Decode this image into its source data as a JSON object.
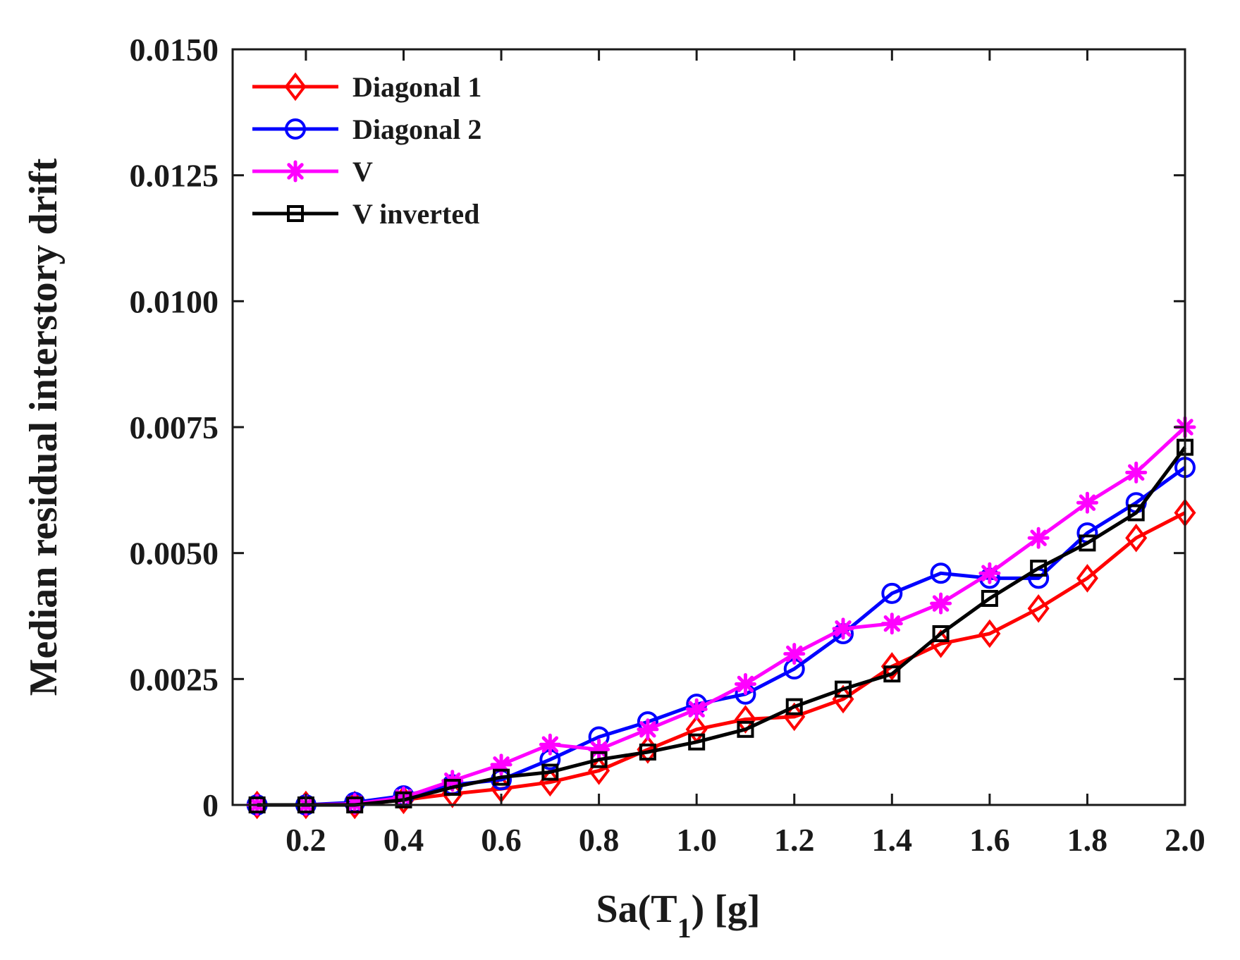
{
  "chart_data": {
    "type": "line",
    "title": "",
    "xlabel": {
      "main": "Sa(T",
      "sub": "1",
      "tail": ") [g]"
    },
    "ylabel": "Median residual interstory drift",
    "xlim": [
      0.05,
      2.0
    ],
    "ylim": [
      0,
      0.015
    ],
    "x_ticks": [
      0.2,
      0.4,
      0.6,
      0.8,
      1.0,
      1.2,
      1.4,
      1.6,
      1.8,
      2.0
    ],
    "x_tick_labels": [
      "0.2",
      "0.4",
      "0.6",
      "0.8",
      "1.0",
      "1.2",
      "1.4",
      "1.6",
      "1.8",
      "2.0"
    ],
    "y_ticks": [
      0,
      0.0025,
      0.005,
      0.0075,
      0.01,
      0.0125,
      0.015
    ],
    "y_tick_labels": [
      "0",
      "0.0025",
      "0.0050",
      "0.0075",
      "0.0100",
      "0.0125",
      "0.0150"
    ],
    "legend_position": "top-left",
    "x": [
      0.1,
      0.2,
      0.3,
      0.4,
      0.5,
      0.6,
      0.7,
      0.8,
      0.9,
      1.0,
      1.1,
      1.2,
      1.3,
      1.4,
      1.5,
      1.6,
      1.7,
      1.8,
      1.9,
      2.0
    ],
    "series": [
      {
        "name": "Diagonal 1",
        "color": "#ff0000",
        "marker": "diamond",
        "values": [
          0.0,
          0.0,
          0.0,
          0.0001,
          0.00022,
          0.00032,
          0.00045,
          0.00068,
          0.0011,
          0.0015,
          0.0017,
          0.00175,
          0.0021,
          0.00275,
          0.0032,
          0.0034,
          0.0039,
          0.0045,
          0.0053,
          0.0058
        ]
      },
      {
        "name": "Diagonal 2",
        "color": "#0000ff",
        "marker": "circle",
        "values": [
          0.0,
          0.0,
          5e-05,
          0.00018,
          0.0004,
          0.0005,
          0.0009,
          0.00135,
          0.00165,
          0.002,
          0.0022,
          0.0027,
          0.0034,
          0.0042,
          0.0046,
          0.0045,
          0.0045,
          0.0054,
          0.006,
          0.0067
        ]
      },
      {
        "name": "V",
        "color": "#ff00ff",
        "marker": "star",
        "values": [
          0.0,
          0.0,
          2e-05,
          0.00015,
          0.00048,
          0.0008,
          0.0012,
          0.0011,
          0.0015,
          0.0019,
          0.0024,
          0.003,
          0.0035,
          0.0036,
          0.004,
          0.0046,
          0.0053,
          0.006,
          0.0066,
          0.0075
        ]
      },
      {
        "name": "V inverted",
        "color": "#000000",
        "marker": "square",
        "values": [
          0.0,
          0.0,
          0.0,
          0.0001,
          0.00035,
          0.00055,
          0.00065,
          0.0009,
          0.00105,
          0.00125,
          0.0015,
          0.00195,
          0.0023,
          0.0026,
          0.0034,
          0.0041,
          0.0047,
          0.0052,
          0.0058,
          0.0071
        ]
      }
    ]
  }
}
